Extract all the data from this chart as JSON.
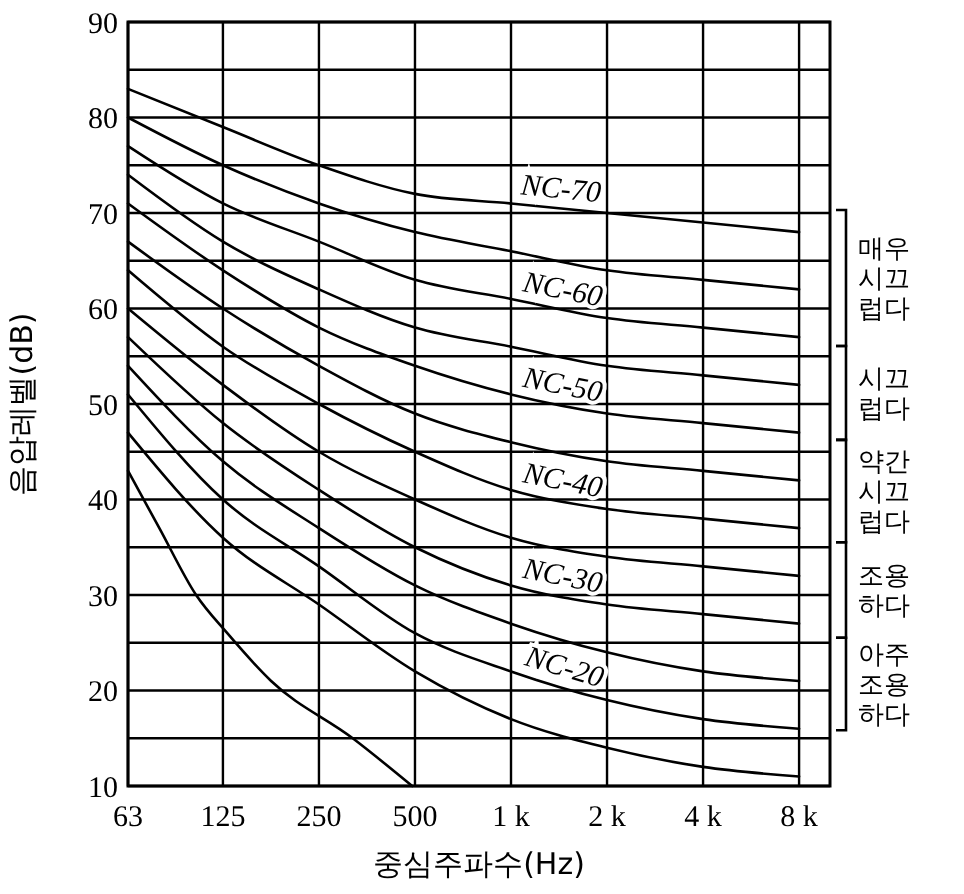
{
  "chart_data": {
    "type": "line",
    "xlabel": "중심주파수(Hz)",
    "ylabel": "음압레벨(dB)",
    "log": "x",
    "grid": true,
    "marker": "none",
    "line_style": "solid",
    "x": [
      63,
      125,
      250,
      500,
      1000,
      2000,
      4000,
      8000
    ],
    "xlim": [
      63,
      10000
    ],
    "xticks": [
      63,
      125,
      250,
      500,
      {
        "value": 1000,
        "label": "1 k"
      },
      {
        "value": 2000,
        "label": "2 k"
      },
      {
        "value": 4000,
        "label": "4 k"
      },
      {
        "value": 8000,
        "label": "8 k"
      }
    ],
    "ylim": [
      10,
      90
    ],
    "yticks": [
      10,
      {
        "value": 15,
        "label": null
      },
      20,
      {
        "value": 25,
        "label": null
      },
      30,
      {
        "value": 35,
        "label": null
      },
      40,
      {
        "value": 45,
        "label": null
      },
      50,
      {
        "value": 55,
        "label": null
      },
      60,
      {
        "value": 65,
        "label": null
      },
      70,
      {
        "value": 75,
        "label": null
      },
      80,
      {
        "value": 85,
        "label": null
      },
      90
    ],
    "series": [
      {
        "color": "#000000",
        "x": [
          63,
          79,
          103,
          129,
          177,
          319,
          490
        ],
        "values": [
          43,
          37,
          30,
          26,
          21,
          15,
          10
        ]
      },
      {
        "color": "#000000",
        "values": [
          47,
          36,
          29,
          22,
          17,
          14,
          12,
          11
        ]
      },
      {
        "name": "NC-20",
        "color": "#000000",
        "values": [
          51,
          40,
          33,
          26,
          22,
          19,
          17,
          16
        ]
      },
      {
        "color": "#000000",
        "values": [
          54,
          44,
          37,
          31,
          27,
          24,
          22,
          21
        ]
      },
      {
        "name": "NC-30",
        "color": "#000000",
        "values": [
          57,
          48,
          41,
          35,
          31,
          29,
          28,
          27
        ]
      },
      {
        "color": "#000000",
        "values": [
          60,
          52,
          45,
          40,
          36,
          34,
          33,
          32
        ]
      },
      {
        "name": "NC-40",
        "color": "#000000",
        "values": [
          64,
          56,
          50,
          45,
          41,
          39,
          38,
          37
        ]
      },
      {
        "color": "#000000",
        "values": [
          67,
          60,
          54,
          49,
          46,
          44,
          43,
          42
        ]
      },
      {
        "name": "NC-50",
        "color": "#000000",
        "values": [
          71,
          64,
          58,
          54,
          51,
          49,
          48,
          47
        ]
      },
      {
        "color": "#000000",
        "values": [
          74,
          67,
          62,
          58,
          56,
          54,
          53,
          52
        ]
      },
      {
        "name": "NC-60",
        "color": "#000000",
        "values": [
          77,
          71,
          67,
          63,
          61,
          59,
          58,
          57
        ]
      },
      {
        "color": "#000000",
        "values": [
          80,
          75,
          71,
          68,
          66,
          64,
          63,
          62
        ]
      },
      {
        "name": "NC-70",
        "color": "#000000",
        "values": [
          83,
          79,
          75,
          72,
          71,
          70,
          69,
          68
        ]
      }
    ],
    "annotations": [
      "매우 시끄럽다",
      "시끄럽다",
      "약간 시끄럽다",
      "조용하다",
      "아주 조용하다"
    ]
  }
}
